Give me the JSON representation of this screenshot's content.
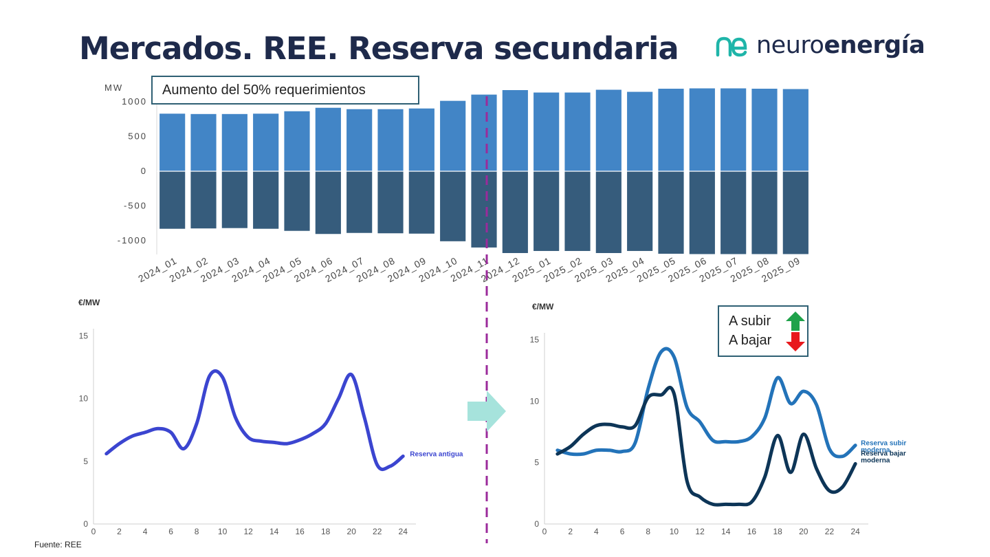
{
  "page": {
    "title": "Mercados. REE. Reserva secundaria",
    "logo": {
      "light": "neuro",
      "bold": "energía",
      "mark": "ne"
    },
    "source": "Fuente: REE"
  },
  "colors": {
    "title": "#1e2a4b",
    "bar_up": "#4285c6",
    "bar_down": "#365c7c",
    "line_old": "#3b45d0",
    "line_up_modern": "#2373b9",
    "line_down_modern": "#0d3557",
    "divider": "#9b2a9b",
    "transition_arrow": "#a6e3dc",
    "logo_mark": "#1fb5a9",
    "box_border": "#2e5f73",
    "arrow_up": "#1fa24a",
    "arrow_down": "#e8191d"
  },
  "callout": {
    "text": "Aumento del 50% requerimientos"
  },
  "legend_box": {
    "up_label": "A subir",
    "down_label": "A bajar",
    "up_icon": "green-up-arrow-icon",
    "down_icon": "red-down-arrow-icon"
  },
  "chart_data": [
    {
      "type": "bar",
      "id": "requirements",
      "ylabel": "MW",
      "ylim": [
        -1200,
        1200
      ],
      "yticks": [
        1000,
        500,
        0,
        -500,
        -1000
      ],
      "yticklabels": [
        "1000",
        "500",
        "0",
        "-500",
        "-1000"
      ],
      "categories": [
        "2024_01",
        "2024_02",
        "2024_03",
        "2024_04",
        "2024_05",
        "2024_06",
        "2024_07",
        "2024_08",
        "2024_09",
        "2024_10",
        "2024_11",
        "2024_12",
        "2025_01",
        "2025_02",
        "2025_03",
        "2025_04",
        "2025_05",
        "2025_06",
        "2025_07",
        "2025_08",
        "2025_09"
      ],
      "series": [
        {
          "name": "A subir",
          "values": [
            830,
            825,
            825,
            830,
            865,
            915,
            895,
            895,
            905,
            1015,
            1105,
            1170,
            1135,
            1135,
            1175,
            1145,
            1190,
            1195,
            1195,
            1190,
            1185
          ]
        },
        {
          "name": "A bajar",
          "values": [
            -830,
            -825,
            -820,
            -830,
            -860,
            -905,
            -890,
            -895,
            -900,
            -1010,
            -1100,
            -1180,
            -1150,
            -1150,
            -1180,
            -1150,
            -1190,
            -1195,
            -1195,
            -1195,
            -1195
          ]
        }
      ],
      "annotation": "Aumento del 50% requerimientos"
    },
    {
      "type": "line",
      "id": "old-reserve-price",
      "ylabel": "€/MW",
      "xlim": [
        0,
        25
      ],
      "ylim": [
        0,
        16
      ],
      "xticks": [
        0,
        2,
        4,
        6,
        8,
        10,
        12,
        14,
        16,
        18,
        20,
        22,
        24
      ],
      "xticklabels": [
        "0",
        "2",
        "4",
        "6",
        "8",
        "10",
        "12",
        "14",
        "16",
        "18",
        "20",
        "22",
        "24"
      ],
      "yticks": [
        0,
        5,
        10,
        15
      ],
      "yticklabels": [
        "0",
        "5",
        "10",
        "15"
      ],
      "x": [
        1,
        2,
        3,
        4,
        5,
        6,
        7,
        8,
        9,
        10,
        11,
        12,
        13,
        14,
        15,
        16,
        17,
        18,
        19,
        20,
        21,
        22,
        23,
        24
      ],
      "series": [
        {
          "name": "Reserva antigua",
          "values": [
            5.6,
            6.4,
            7.0,
            7.3,
            7.6,
            7.3,
            6.0,
            8.0,
            11.8,
            11.7,
            8.5,
            6.9,
            6.6,
            6.5,
            6.4,
            6.7,
            7.2,
            8.0,
            10.0,
            11.9,
            8.5,
            4.7,
            4.6,
            5.4
          ]
        }
      ]
    },
    {
      "type": "line",
      "id": "modern-reserve-price",
      "ylabel": "€/MW",
      "xlim": [
        0,
        25
      ],
      "ylim": [
        0,
        16
      ],
      "xticks": [
        0,
        2,
        4,
        6,
        8,
        10,
        12,
        14,
        16,
        18,
        20,
        22,
        24
      ],
      "xticklabels": [
        "0",
        "2",
        "4",
        "6",
        "8",
        "10",
        "12",
        "14",
        "16",
        "18",
        "20",
        "22",
        "24"
      ],
      "yticks": [
        0,
        5,
        10,
        15
      ],
      "yticklabels": [
        "0",
        "5",
        "10",
        "15"
      ],
      "x": [
        1,
        2,
        3,
        4,
        5,
        6,
        7,
        8,
        9,
        10,
        11,
        12,
        13,
        14,
        15,
        16,
        17,
        18,
        19,
        20,
        21,
        22,
        23,
        24
      ],
      "series": [
        {
          "name": "Reserva subir moderna",
          "label_lines": [
            "Reserva subir",
            "moderna"
          ],
          "values": [
            6.0,
            5.7,
            5.7,
            6.0,
            6.0,
            5.9,
            6.6,
            11.0,
            14.0,
            13.6,
            9.5,
            8.3,
            6.8,
            6.7,
            6.7,
            7.1,
            8.6,
            11.9,
            9.8,
            10.8,
            9.7,
            6.1,
            5.5,
            6.4
          ]
        },
        {
          "name": "Reserva bajar moderna",
          "label_lines": [
            "Reserva bajar",
            "moderna"
          ],
          "values": [
            5.7,
            6.3,
            7.3,
            8.0,
            8.1,
            7.9,
            8.0,
            10.3,
            10.5,
            10.6,
            3.5,
            2.2,
            1.6,
            1.6,
            1.6,
            1.8,
            3.8,
            7.2,
            4.2,
            7.3,
            4.5,
            2.7,
            3.0,
            4.9
          ]
        }
      ]
    }
  ]
}
